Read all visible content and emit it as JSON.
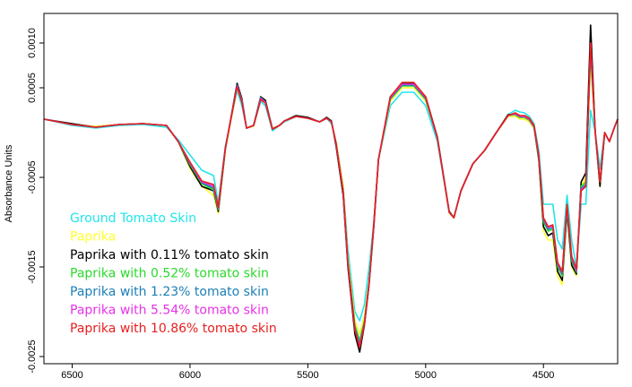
{
  "chart_data": {
    "type": "line",
    "title": "",
    "xlabel": "",
    "ylabel": "Absorbance Units",
    "x_reversed": true,
    "xlim": [
      6620,
      4185
    ],
    "ylim": [
      -0.00258,
      0.00133
    ],
    "x_ticks": [
      6500,
      6000,
      5500,
      5000,
      4500
    ],
    "y_ticks": [
      -0.0025,
      -0.0015,
      -0.0005,
      0.0005,
      0.001
    ],
    "x_tick_labels": [
      "6500",
      "6000",
      "5500",
      "5000",
      "4500"
    ],
    "y_tick_labels": [
      "-0.0025",
      "-0.0015",
      "-0.0005",
      "0.0005",
      "0.0010"
    ],
    "grid": false,
    "legend_position": "bottom-left",
    "base_x": [
      6620,
      6500,
      6400,
      6300,
      6200,
      6100,
      6050,
      6000,
      5950,
      5900,
      5880,
      5850,
      5800,
      5780,
      5760,
      5730,
      5700,
      5680,
      5650,
      5620,
      5600,
      5550,
      5500,
      5450,
      5420,
      5400,
      5380,
      5350,
      5330,
      5300,
      5280,
      5260,
      5240,
      5220,
      5200,
      5150,
      5100,
      5050,
      5000,
      4950,
      4900,
      4880,
      4850,
      4800,
      4750,
      4700,
      4650,
      4620,
      4600,
      4580,
      4560,
      4540,
      4520,
      4500,
      4480,
      4460,
      4440,
      4420,
      4400,
      4380,
      4360,
      4340,
      4320,
      4300,
      4280,
      4260,
      4240,
      4220,
      4200,
      4185
    ],
    "series": [
      {
        "name": "Ground Tomato Skin",
        "color": "#22e5ea",
        "y": [
          0.00015,
          8e-05,
          5e-05,
          8e-05,
          9e-05,
          6e-05,
          -8e-05,
          -0.00025,
          -0.00042,
          -0.00048,
          -0.00078,
          -0.00015,
          0.00047,
          0.0003,
          5e-05,
          7e-05,
          0.00035,
          0.0003,
          2e-05,
          8e-05,
          0.00012,
          0.00018,
          0.00016,
          0.00012,
          0.00016,
          0.0001,
          -0.0001,
          -0.0006,
          -0.0013,
          -0.002,
          -0.0021,
          -0.00192,
          -0.0015,
          -0.001,
          -0.0003,
          0.0003,
          0.00045,
          0.00045,
          0.0003,
          -0.0001,
          -0.00088,
          -0.00095,
          -0.00065,
          -0.00035,
          -0.0002,
          0.0,
          0.0002,
          0.00025,
          0.00023,
          0.00022,
          0.00018,
          0.0001,
          -0.0002,
          -0.0008,
          -0.0008,
          -0.0008,
          -0.0012,
          -0.0013,
          -0.0007,
          -0.0012,
          -0.0015,
          -0.0008,
          -0.0008,
          0.00025,
          0.0,
          -0.0004,
          0.0,
          -0.0001,
          5e-05,
          0.00015
        ]
      },
      {
        "name": "Paprika",
        "color": "#ffff2e",
        "y": [
          0.00015,
          9e-05,
          7e-05,
          9e-05,
          0.0001,
          8e-05,
          -0.0001,
          -0.0004,
          -0.0006,
          -0.0007,
          -0.0009,
          -0.0002,
          0.0005,
          0.00035,
          5e-05,
          7e-05,
          0.00038,
          0.00035,
          5e-05,
          8e-05,
          0.00013,
          0.00018,
          0.00016,
          0.00012,
          0.00016,
          0.00012,
          -0.0001,
          -0.0006,
          -0.0014,
          -0.0021,
          -0.00225,
          -0.00205,
          -0.00165,
          -0.001,
          -0.0003,
          0.00035,
          0.0005,
          0.0005,
          0.00035,
          -5e-05,
          -0.0009,
          -0.00095,
          -0.00065,
          -0.00035,
          -0.0002,
          0.0,
          0.00018,
          0.00018,
          0.00015,
          0.00015,
          0.00012,
          5e-05,
          -0.0003,
          -0.0011,
          -0.0012,
          -0.0012,
          -0.0016,
          -0.0017,
          -0.0009,
          -0.0015,
          -0.0016,
          -0.0006,
          -0.0005,
          0.0008,
          0.0,
          -0.0006,
          0.0,
          -0.0001,
          5e-05,
          0.00015
        ]
      },
      {
        "name": "Paprika with 0.11% tomato skin",
        "color": "#000000",
        "y": [
          0.00015,
          0.0001,
          6e-05,
          9e-05,
          0.0001,
          8e-05,
          -0.0001,
          -0.00038,
          -0.0006,
          -0.00065,
          -0.00088,
          -0.00018,
          0.00055,
          0.00038,
          5e-05,
          8e-05,
          0.0004,
          0.00036,
          4e-05,
          8e-05,
          0.00013,
          0.00019,
          0.00017,
          0.00012,
          0.00017,
          0.00013,
          -0.00015,
          -0.0007,
          -0.0015,
          -0.00225,
          -0.00245,
          -0.00215,
          -0.0017,
          -0.00105,
          -0.0003,
          0.0004,
          0.00055,
          0.00055,
          0.0004,
          -5e-05,
          -0.00088,
          -0.00095,
          -0.00065,
          -0.00035,
          -0.0002,
          0.0,
          0.0002,
          0.0002,
          0.00017,
          0.00017,
          0.00014,
          6e-05,
          -0.0003,
          -0.00105,
          -0.00115,
          -0.00112,
          -0.00155,
          -0.00165,
          -0.00088,
          -0.00148,
          -0.00158,
          -0.00055,
          -0.00045,
          0.0012,
          0.0,
          -0.0006,
          0.0,
          -0.0001,
          5e-05,
          0.00015
        ]
      },
      {
        "name": "Paprika with 0.52% tomato skin",
        "color": "#2bd92b",
        "y": [
          0.00015,
          9e-05,
          6e-05,
          9e-05,
          0.0001,
          8e-05,
          -0.0001,
          -0.00036,
          -0.00057,
          -0.00064,
          -0.00086,
          -0.00018,
          0.00052,
          0.00036,
          5e-05,
          8e-05,
          0.00039,
          0.00034,
          4e-05,
          8e-05,
          0.00013,
          0.00018,
          0.00016,
          0.00012,
          0.00016,
          0.00012,
          -0.00012,
          -0.00065,
          -0.00145,
          -0.00215,
          -0.00232,
          -0.0021,
          -0.00168,
          -0.00102,
          -0.0003,
          0.00037,
          0.00052,
          0.00052,
          0.00037,
          -6e-05,
          -0.00089,
          -0.00095,
          -0.00065,
          -0.00035,
          -0.0002,
          0.0,
          0.00019,
          0.0002,
          0.00017,
          0.00017,
          0.00014,
          6e-05,
          -0.00028,
          -0.001,
          -0.0011,
          -0.00108,
          -0.0015,
          -0.0016,
          -0.00085,
          -0.00143,
          -0.00156,
          -0.0006,
          -0.00055,
          0.0009,
          0.0,
          -0.00055,
          0.0,
          -0.0001,
          5e-05,
          0.00015
        ]
      },
      {
        "name": "Paprika with 1.23% tomato skin",
        "color": "#1d7fb5",
        "y": [
          0.00015,
          9e-05,
          6e-05,
          9e-05,
          0.0001,
          8e-05,
          -0.0001,
          -0.00035,
          -0.00056,
          -0.00062,
          -0.00085,
          -0.00018,
          0.00053,
          0.00036,
          5e-05,
          8e-05,
          0.00039,
          0.00034,
          4e-05,
          8e-05,
          0.00013,
          0.00018,
          0.00016,
          0.00012,
          0.00016,
          0.00012,
          -0.00012,
          -0.00066,
          -0.00146,
          -0.00218,
          -0.00236,
          -0.00212,
          -0.00168,
          -0.00102,
          -0.0003,
          0.00038,
          0.00053,
          0.00053,
          0.00038,
          -6e-05,
          -0.00089,
          -0.00095,
          -0.00065,
          -0.00035,
          -0.0002,
          0.0,
          0.00019,
          0.00021,
          0.00018,
          0.00018,
          0.00015,
          7e-05,
          -0.00027,
          -0.00098,
          -0.00108,
          -0.00106,
          -0.00148,
          -0.00158,
          -0.00083,
          -0.00141,
          -0.00155,
          -0.00062,
          -0.00058,
          0.00095,
          0.0,
          -0.00055,
          0.0,
          -0.0001,
          5e-05,
          0.00015
        ]
      },
      {
        "name": "Paprika with 5.54% tomato skin",
        "color": "#e632e6",
        "y": [
          0.00015,
          9e-05,
          6e-05,
          9e-05,
          0.0001,
          8e-05,
          -0.0001,
          -0.00034,
          -0.00055,
          -0.0006,
          -0.00084,
          -0.00017,
          0.00052,
          0.00035,
          5e-05,
          8e-05,
          0.00038,
          0.00034,
          4e-05,
          8e-05,
          0.00013,
          0.00018,
          0.00016,
          0.00012,
          0.00016,
          0.00012,
          -0.00012,
          -0.00066,
          -0.00146,
          -0.0022,
          -0.00238,
          -0.00213,
          -0.00168,
          -0.00102,
          -0.0003,
          0.00039,
          0.00054,
          0.00054,
          0.00039,
          -6e-05,
          -0.00089,
          -0.00095,
          -0.00065,
          -0.00035,
          -0.0002,
          0.0,
          0.00019,
          0.00021,
          0.00018,
          0.00018,
          0.00015,
          7e-05,
          -0.00026,
          -0.00096,
          -0.00106,
          -0.00104,
          -0.00146,
          -0.00156,
          -0.00082,
          -0.00139,
          -0.00154,
          -0.00063,
          -0.0006,
          0.001,
          0.0,
          -0.00055,
          0.0,
          -0.0001,
          5e-05,
          0.00015
        ]
      },
      {
        "name": "Paprika with 10.86% tomato skin",
        "color": "#e81e1e",
        "y": [
          0.00015,
          9e-05,
          6e-05,
          9e-05,
          0.0001,
          8e-05,
          -0.0001,
          -0.00033,
          -0.00054,
          -0.00058,
          -0.00083,
          -0.00017,
          0.00051,
          0.00034,
          5e-05,
          8e-05,
          0.00037,
          0.00033,
          4e-05,
          8e-05,
          0.00013,
          0.00018,
          0.00016,
          0.00012,
          0.00016,
          0.00012,
          -0.00012,
          -0.00065,
          -0.00145,
          -0.0022,
          -0.0024,
          -0.00214,
          -0.00168,
          -0.00102,
          -0.0003,
          0.0004,
          0.00056,
          0.00056,
          0.0004,
          -6e-05,
          -0.00089,
          -0.00095,
          -0.00065,
          -0.00035,
          -0.0002,
          0.0,
          0.00019,
          0.00022,
          0.00019,
          0.00019,
          0.00016,
          8e-05,
          -0.00025,
          -0.00095,
          -0.00105,
          -0.00103,
          -0.00145,
          -0.00155,
          -0.0008,
          -0.00138,
          -0.00152,
          -0.00065,
          -0.0006,
          0.001,
          0.0,
          -0.00055,
          0.0,
          -0.0001,
          5e-05,
          0.00015
        ]
      }
    ]
  }
}
